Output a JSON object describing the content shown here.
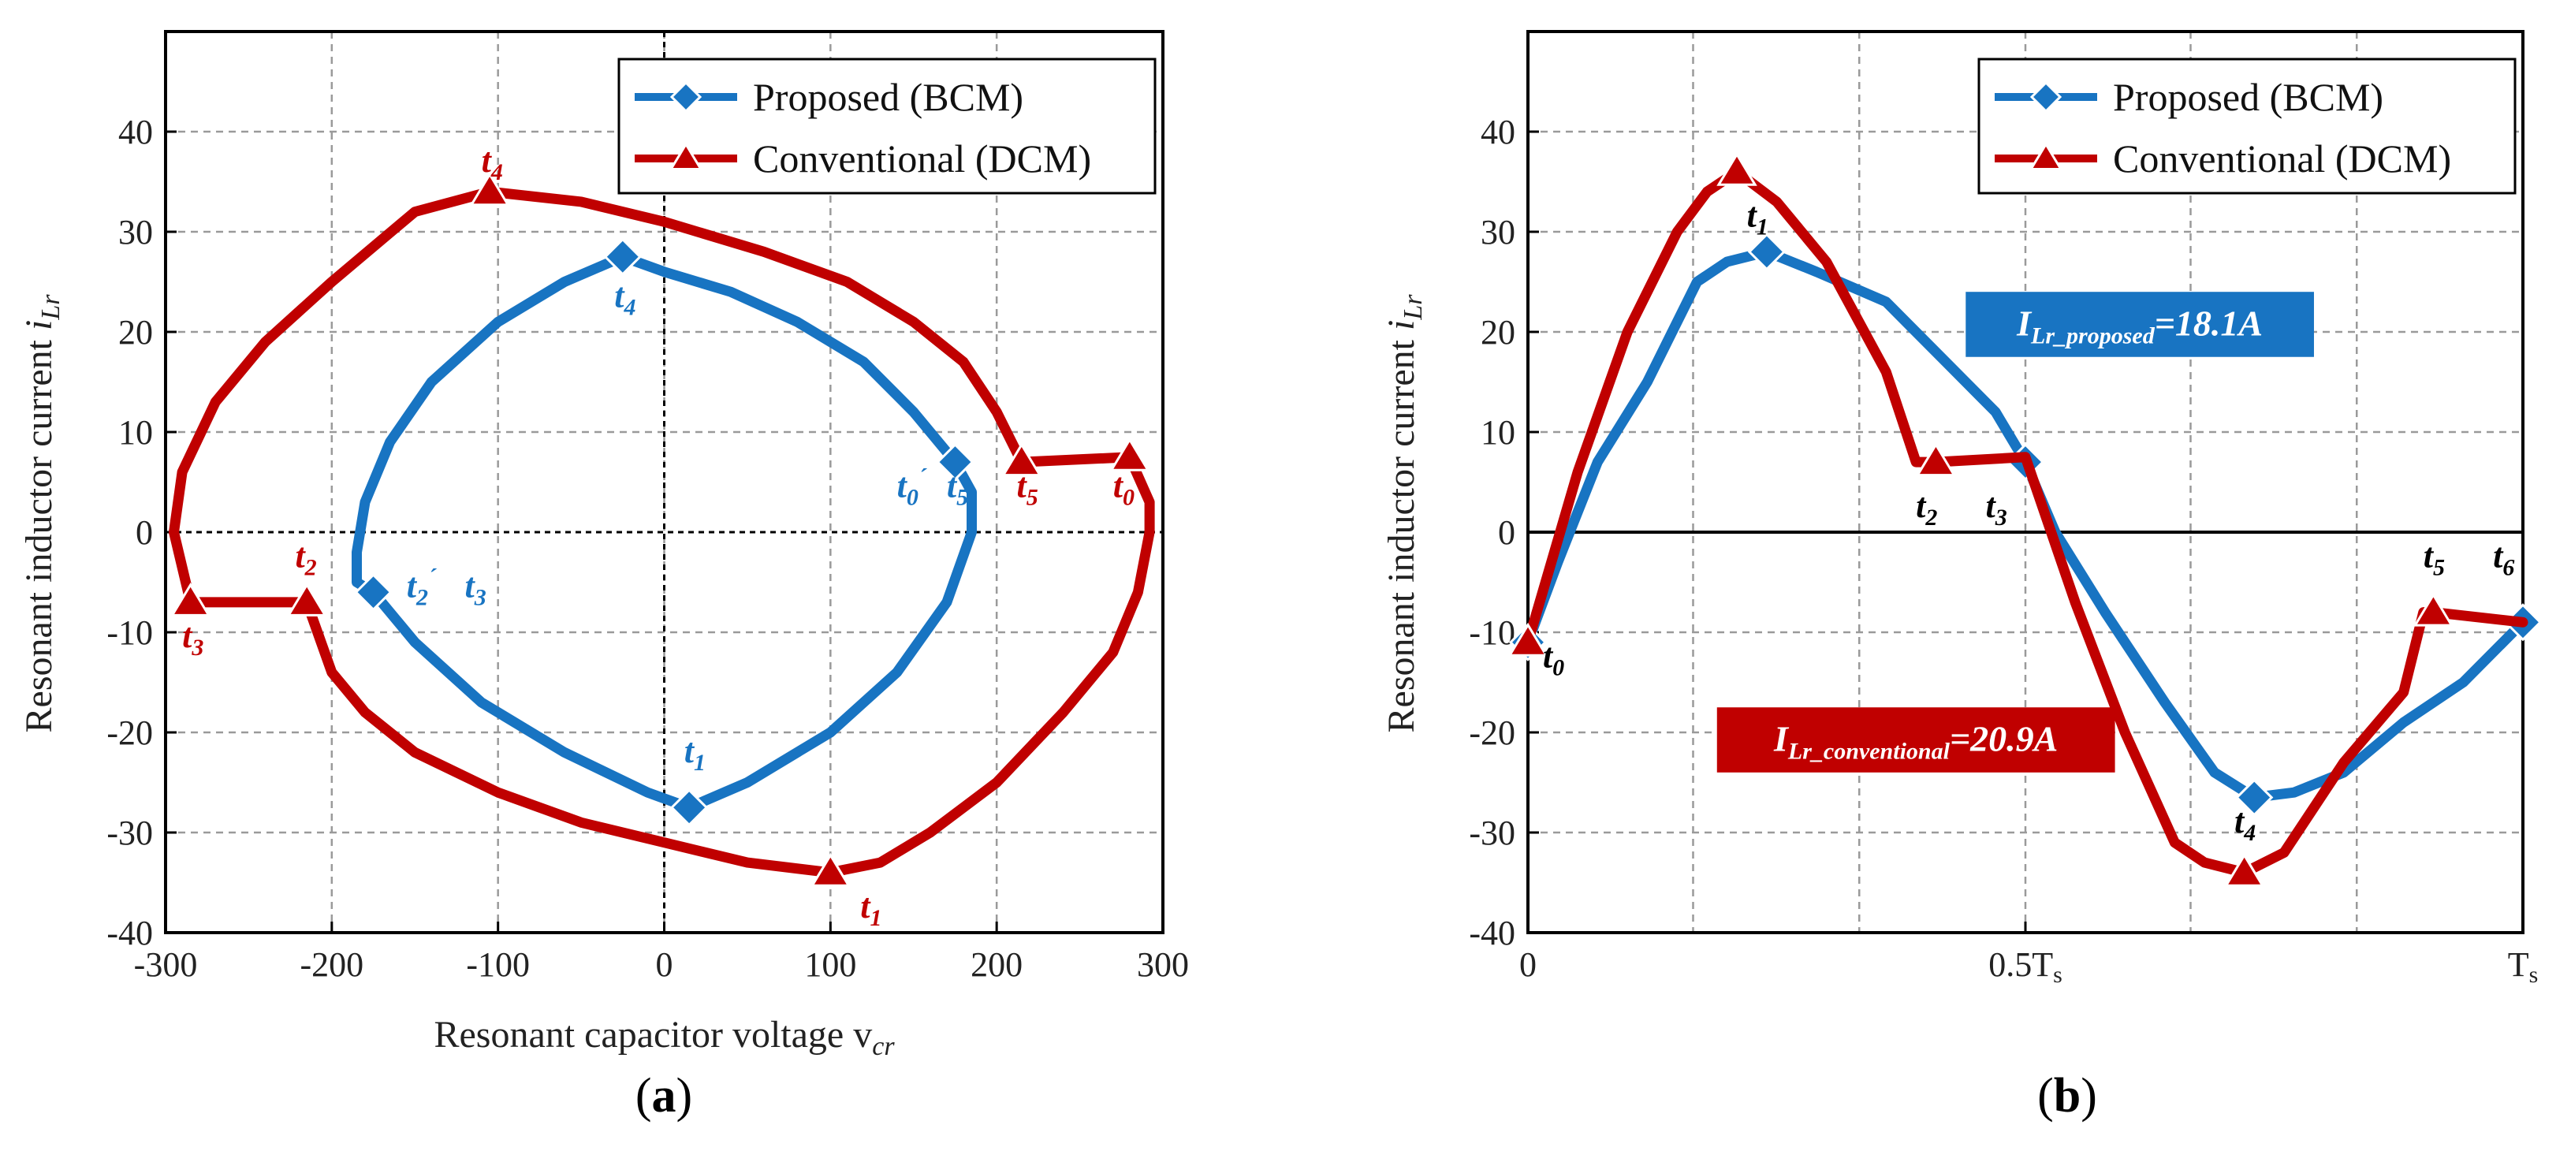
{
  "colors": {
    "proposed": "#1874c2",
    "conventional": "#c00000",
    "grid": "#9a9a9a",
    "axis": "#000000"
  },
  "chart_data": [
    {
      "id": "a",
      "type": "line",
      "panel_label": {
        "open": "(",
        "letter": "a",
        "close": ")"
      },
      "xlabel": {
        "main": "Resonant capacitor voltage v",
        "sub": "cr"
      },
      "ylabel": {
        "main": "Resonant inductor current ",
        "var": "i",
        "sub": "Lr"
      },
      "xlim": [
        -300,
        300
      ],
      "ylim": [
        -40,
        50
      ],
      "xticks": [
        {
          "v": -300,
          "label": "-300"
        },
        {
          "v": -200,
          "label": "-200"
        },
        {
          "v": -100,
          "label": "-100"
        },
        {
          "v": 0,
          "label": "0"
        },
        {
          "v": 100,
          "label": "100"
        },
        {
          "v": 200,
          "label": "200"
        },
        {
          "v": 300,
          "label": "300"
        }
      ],
      "yticks": [
        {
          "v": -40,
          "label": "-40"
        },
        {
          "v": -30,
          "label": "-30"
        },
        {
          "v": -20,
          "label": "-20"
        },
        {
          "v": -10,
          "label": "-10"
        },
        {
          "v": 0,
          "label": "0"
        },
        {
          "v": 10,
          "label": "10"
        },
        {
          "v": 20,
          "label": "20"
        },
        {
          "v": 30,
          "label": "30"
        },
        {
          "v": 40,
          "label": "40"
        }
      ],
      "grid": true,
      "legend_position": "top-right",
      "series": [
        {
          "name": "Proposed (BCM)",
          "color_key": "proposed",
          "marker": "diamond",
          "x": [
            175,
            150,
            120,
            80,
            40,
            0,
            -25,
            -60,
            -100,
            -140,
            -165,
            -180,
            -185,
            -185,
            -175,
            -150,
            -110,
            -60,
            -10,
            15,
            50,
            100,
            140,
            170,
            185,
            185,
            175
          ],
          "y": [
            7,
            12,
            17,
            21,
            24,
            26,
            27.5,
            25,
            21,
            15,
            9,
            3,
            -2,
            -5,
            -6,
            -11,
            -17,
            -22,
            -26,
            -27.5,
            -25,
            -20,
            -14,
            -7,
            0,
            4,
            7
          ],
          "markers": [
            [
              175,
              7
            ],
            [
              -25,
              27.5
            ],
            [
              -175,
              -6
            ],
            [
              15,
              -27.5
            ]
          ]
        },
        {
          "name": "Conventional (DCM)",
          "color_key": "conventional",
          "marker": "triangle",
          "x": [
            280,
            215,
            200,
            180,
            150,
            110,
            60,
            0,
            -50,
            -105,
            -150,
            -200,
            -240,
            -270,
            -290,
            -295,
            -285,
            -215,
            -200,
            -180,
            -150,
            -100,
            -50,
            0,
            50,
            100,
            130,
            160,
            200,
            240,
            270,
            285,
            292,
            292,
            280
          ],
          "y": [
            7.5,
            7,
            12,
            17,
            21,
            25,
            28,
            31,
            33,
            34,
            32,
            25,
            19,
            13,
            6,
            0,
            -7,
            -7,
            -14,
            -18,
            -22,
            -26,
            -29,
            -31,
            -33,
            -34,
            -33,
            -30,
            -25,
            -18,
            -12,
            -6,
            0,
            3,
            7.5
          ],
          "markers": [
            [
              280,
              7.5
            ],
            [
              215,
              7
            ],
            [
              -105,
              34
            ],
            [
              -285,
              -7
            ],
            [
              -215,
              -7
            ],
            [
              100,
              -34
            ]
          ]
        }
      ],
      "annotations": [
        {
          "base": "t",
          "sub": "4",
          "prime": "",
          "color_key": "conventional",
          "x": -110,
          "y": 36
        },
        {
          "base": "t",
          "sub": "4",
          "prime": "",
          "color_key": "proposed",
          "x": -30,
          "y": 22.5
        },
        {
          "base": "t",
          "sub": "0",
          "prime": "´",
          "color_key": "proposed",
          "x": 140,
          "y": 3.5
        },
        {
          "base": "t",
          "sub": "5",
          "prime": "",
          "color_key": "proposed",
          "x": 170,
          "y": 3.5
        },
        {
          "base": "t",
          "sub": "5",
          "prime": "",
          "color_key": "conventional",
          "x": 212,
          "y": 3.5
        },
        {
          "base": "t",
          "sub": "0",
          "prime": "",
          "color_key": "conventional",
          "x": 270,
          "y": 3.5
        },
        {
          "base": "t",
          "sub": "2",
          "prime": "",
          "color_key": "conventional",
          "x": -222,
          "y": -3.5
        },
        {
          "base": "t",
          "sub": "2",
          "prime": "´",
          "color_key": "proposed",
          "x": -155,
          "y": -6.5
        },
        {
          "base": "t",
          "sub": "3",
          "prime": "",
          "color_key": "proposed",
          "x": -120,
          "y": -6.5
        },
        {
          "base": "t",
          "sub": "3",
          "prime": "",
          "color_key": "conventional",
          "x": -290,
          "y": -11.5
        },
        {
          "base": "t",
          "sub": "1",
          "prime": "",
          "color_key": "proposed",
          "x": 12,
          "y": -23
        },
        {
          "base": "t",
          "sub": "1",
          "prime": "",
          "color_key": "conventional",
          "x": 118,
          "y": -38.5
        }
      ],
      "boxes": []
    },
    {
      "id": "b",
      "type": "line",
      "panel_label": {
        "open": "(",
        "letter": "b",
        "close": ")"
      },
      "xlabel": {
        "main": "",
        "sub": ""
      },
      "ylabel": {
        "main": "Resonant inductor current ",
        "var": "i",
        "sub": "Lr"
      },
      "xlim": [
        0,
        1
      ],
      "ylim": [
        -40,
        50
      ],
      "xticks": [
        {
          "v": 0,
          "label": "0"
        },
        {
          "v": 0.5,
          "label": "0.5T",
          "sub": "s"
        },
        {
          "v": 1,
          "label": "T",
          "sub": "s"
        }
      ],
      "xgrid": [
        0.166,
        0.333,
        0.5,
        0.666,
        0.833
      ],
      "yticks": [
        {
          "v": -40,
          "label": "-40"
        },
        {
          "v": -30,
          "label": "-30"
        },
        {
          "v": -20,
          "label": "-20"
        },
        {
          "v": -10,
          "label": "-10"
        },
        {
          "v": 0,
          "label": "0"
        },
        {
          "v": 10,
          "label": "10"
        },
        {
          "v": 20,
          "label": "20"
        },
        {
          "v": 30,
          "label": "30"
        },
        {
          "v": 40,
          "label": "40"
        }
      ],
      "grid": true,
      "legend_position": "top-right",
      "series": [
        {
          "name": "Proposed (BCM)",
          "color_key": "proposed",
          "marker": "diamond",
          "x": [
            0,
            0.03,
            0.07,
            0.12,
            0.17,
            0.2,
            0.24,
            0.29,
            0.36,
            0.42,
            0.47,
            0.5,
            0.53,
            0.58,
            0.64,
            0.69,
            0.73,
            0.77,
            0.82,
            0.88,
            0.94,
            1.0
          ],
          "y": [
            -11,
            -3,
            7,
            15,
            25,
            27,
            28,
            26,
            23,
            17,
            12,
            7,
            0,
            -8,
            -17,
            -24,
            -26.5,
            -26,
            -24,
            -19,
            -15,
            -9
          ],
          "markers": [
            [
              0,
              -11
            ],
            [
              0.24,
              28
            ],
            [
              0.5,
              7
            ],
            [
              0.73,
              -26.5
            ],
            [
              1.0,
              -9
            ]
          ]
        },
        {
          "name": "Conventional (DCM)",
          "color_key": "conventional",
          "marker": "triangle",
          "x": [
            0,
            0.05,
            0.1,
            0.15,
            0.18,
            0.21,
            0.25,
            0.3,
            0.36,
            0.39,
            0.41,
            0.5,
            0.55,
            0.6,
            0.65,
            0.68,
            0.72,
            0.76,
            0.82,
            0.88,
            0.9,
            0.91,
            1.0
          ],
          "y": [
            -11,
            6,
            20,
            30,
            34,
            36,
            33,
            27,
            16,
            7,
            7,
            7.5,
            -7,
            -20,
            -31,
            -33,
            -34,
            -32,
            -23,
            -16,
            -8,
            -8,
            -9
          ],
          "markers": [
            [
              0,
              -11
            ],
            [
              0.21,
              36
            ],
            [
              0.41,
              7
            ],
            [
              0.72,
              -34
            ],
            [
              0.91,
              -8
            ]
          ]
        }
      ],
      "annotations": [
        {
          "base": "t",
          "sub": "1",
          "prime": "",
          "color_key": "axis",
          "x": 0.22,
          "y": 30.5
        },
        {
          "base": "t",
          "sub": "2",
          "prime": "",
          "color_key": "axis",
          "x": 0.39,
          "y": 1.5
        },
        {
          "base": "t",
          "sub": "3",
          "prime": "",
          "color_key": "axis",
          "x": 0.46,
          "y": 1.5
        },
        {
          "base": "t",
          "sub": "0",
          "prime": "",
          "color_key": "axis",
          "x": 0.015,
          "y": -13.5
        },
        {
          "base": "t",
          "sub": "4",
          "prime": "",
          "color_key": "axis",
          "x": 0.71,
          "y": -30
        },
        {
          "base": "t",
          "sub": "5",
          "prime": "",
          "color_key": "axis",
          "x": 0.9,
          "y": -3.5
        },
        {
          "base": "t",
          "sub": "6",
          "prime": "",
          "color_key": "axis",
          "x": 0.97,
          "y": -3.5
        }
      ],
      "boxes": [
        {
          "text": "I",
          "sub": "Lr_proposed",
          "rest": "=18.1A",
          "color_key": "proposed",
          "x0": 0.44,
          "x1": 0.79,
          "y0": 17.5,
          "y1": 24
        },
        {
          "text": "I",
          "sub": "Lr_conventional",
          "rest": "=20.9A",
          "color_key": "conventional",
          "x0": 0.19,
          "x1": 0.59,
          "y0": -24,
          "y1": -17.5
        }
      ]
    }
  ]
}
